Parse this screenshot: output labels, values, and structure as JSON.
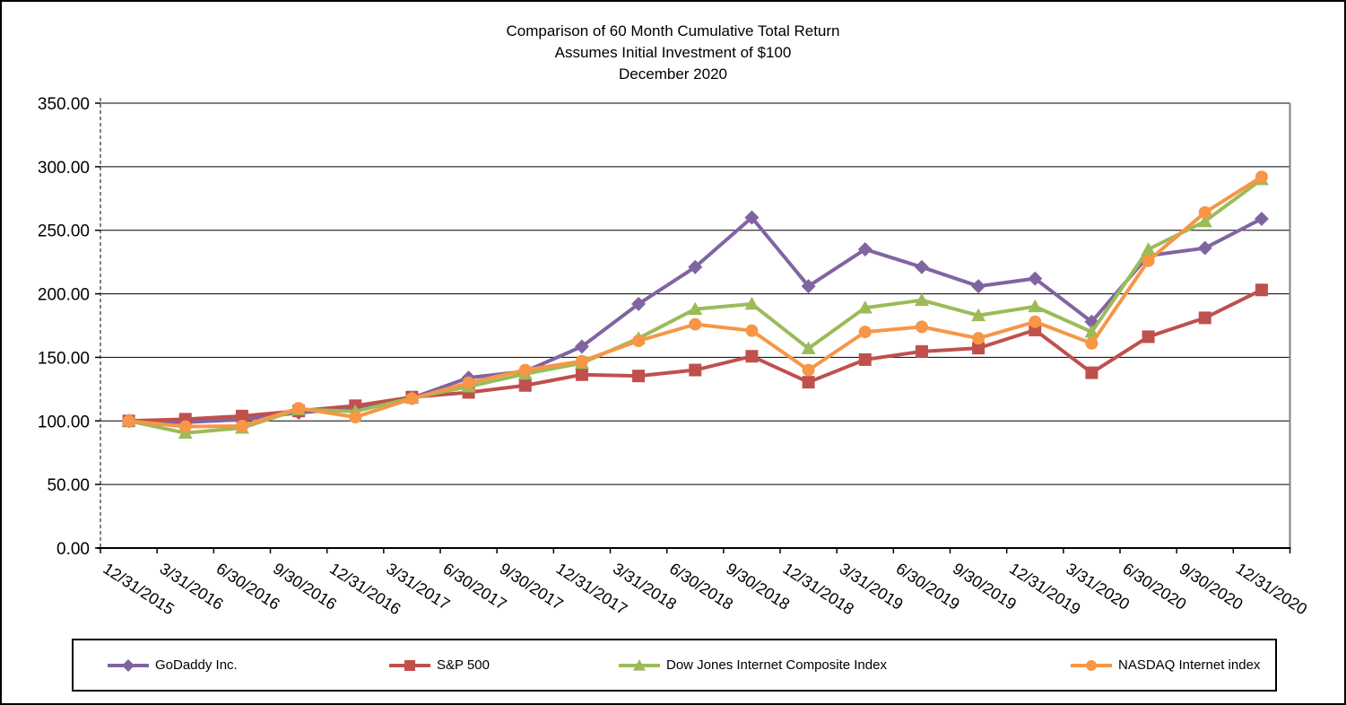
{
  "chart_data": {
    "type": "line",
    "title": "Comparison of 60 Month Cumulative Total Return",
    "subtitle": "Assumes Initial Investment of $100",
    "date_label": "December 2020",
    "x": [
      "12/31/2015",
      "3/31/2016",
      "6/30/2016",
      "9/30/2016",
      "12/31/2016",
      "3/31/2017",
      "6/30/2017",
      "9/30/2017",
      "12/31/2017",
      "3/31/2018",
      "6/30/2018",
      "9/30/2018",
      "12/31/2018",
      "3/31/2019",
      "6/30/2019",
      "9/30/2019",
      "12/31/2019",
      "3/31/2020",
      "6/30/2020",
      "9/30/2020",
      "12/31/2020"
    ],
    "ylim": [
      0,
      350
    ],
    "ystep": 50,
    "y_ticks": [
      "0.00",
      "50.00",
      "100.00",
      "150.00",
      "200.00",
      "250.00",
      "300.00",
      "350.00"
    ],
    "grid": "horizontal",
    "legend_position": "bottom",
    "series": [
      {
        "name": "GoDaddy Inc.",
        "color": "#8064A2",
        "marker": "diamond",
        "values": [
          100,
          99,
          101,
          106.5,
          110,
          118,
          134,
          139,
          158.5,
          192,
          221,
          260,
          206,
          235,
          221,
          206,
          212,
          178,
          230,
          236,
          259
        ]
      },
      {
        "name": "S&P 500",
        "color": "#C0504D",
        "marker": "square",
        "values": [
          100,
          101.35,
          103.84,
          107.84,
          111.96,
          118.76,
          122.43,
          127.91,
          136.4,
          135.36,
          140.05,
          150.85,
          130.45,
          148.26,
          154.64,
          157.27,
          171.53,
          137.91,
          166.23,
          181.08,
          203.04
        ]
      },
      {
        "name": "Dow Jones Internet Composite Index",
        "color": "#9BBB59",
        "marker": "triangle",
        "values": [
          100,
          90.5,
          94.5,
          109,
          107.5,
          118,
          127,
          137,
          145.5,
          165,
          188,
          192,
          157,
          189,
          195,
          183,
          190,
          170,
          235,
          257,
          290
        ]
      },
      {
        "name": "NASDAQ Internet index",
        "color": "#F79646",
        "marker": "circle",
        "values": [
          100,
          95.5,
          96,
          110,
          103,
          117.5,
          130,
          140,
          147,
          163,
          176,
          171,
          140,
          170,
          174,
          165,
          178,
          161,
          226,
          264,
          292
        ]
      }
    ],
    "axis_colors": {
      "gridline": "#000000",
      "plot_border": "#808080",
      "axis": "#000000"
    }
  }
}
